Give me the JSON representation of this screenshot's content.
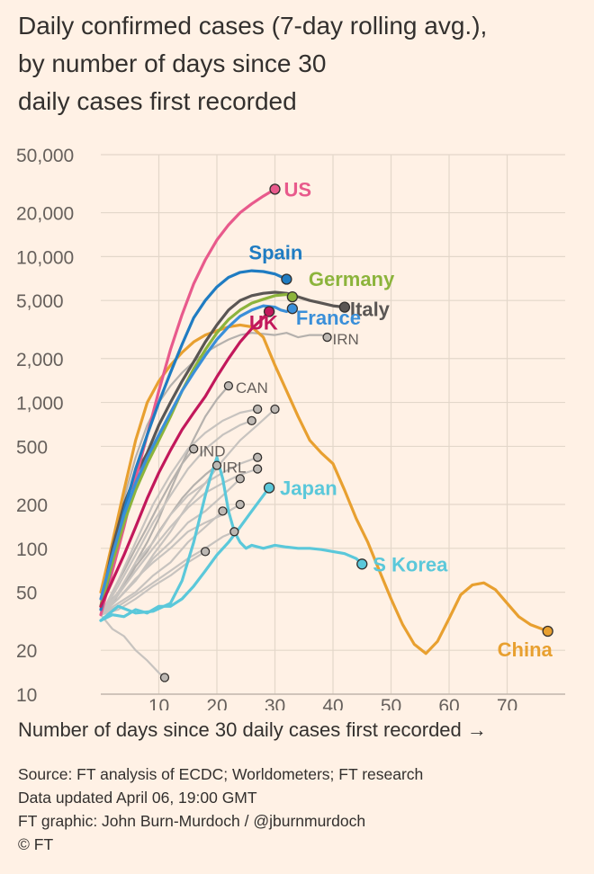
{
  "chart_data": {
    "type": "line",
    "title_lines": [
      "Daily confirmed cases (7-day rolling avg.),",
      "by number of days since 30",
      "daily cases first recorded"
    ],
    "xlabel": "Number of days since 30 daily cases first recorded",
    "x_arrow": "→",
    "yscale": "log",
    "xlim": [
      0,
      80
    ],
    "ylim": [
      10,
      50000
    ],
    "x_ticks": [
      10,
      20,
      30,
      40,
      50,
      60,
      70
    ],
    "x_tick_labels": [
      "10",
      "20",
      "30",
      "40",
      "50",
      "60",
      "70"
    ],
    "y_ticks": [
      10,
      20,
      50,
      100,
      200,
      500,
      1000,
      2000,
      5000,
      10000,
      20000,
      50000
    ],
    "y_tick_labels": [
      "10",
      "20",
      "50",
      "100",
      "200",
      "500",
      "1,000",
      "2,000",
      "5,000",
      "10,000",
      "20,000",
      "50,000"
    ],
    "series": [
      {
        "name": "China",
        "label": "China",
        "color": "#e8a030",
        "label_style": "bold",
        "x": [
          0,
          2,
          4,
          6,
          8,
          10,
          12,
          14,
          16,
          18,
          20,
          22,
          24,
          26,
          28,
          30,
          32,
          34,
          36,
          38,
          40,
          42,
          44,
          46,
          48,
          50,
          52,
          54,
          56,
          58,
          60,
          62,
          64,
          66,
          68,
          70,
          72,
          74,
          76,
          77
        ],
        "y": [
          50,
          110,
          250,
          550,
          1000,
          1400,
          1800,
          2200,
          2600,
          2900,
          3100,
          3300,
          3400,
          3300,
          2800,
          1800,
          1200,
          800,
          550,
          450,
          380,
          250,
          160,
          110,
          70,
          45,
          30,
          22,
          19,
          23,
          33,
          48,
          56,
          58,
          52,
          42,
          34,
          30,
          28,
          27
        ]
      },
      {
        "name": "S Korea",
        "label": "S Korea",
        "color": "#5bc8da",
        "label_style": "bold",
        "x": [
          0,
          3,
          6,
          9,
          12,
          14,
          16,
          18,
          19,
          20,
          21,
          22,
          23,
          24,
          25,
          26,
          28,
          30,
          32,
          34,
          36,
          38,
          40,
          42,
          44,
          45
        ],
        "y": [
          32,
          40,
          36,
          37,
          42,
          60,
          110,
          230,
          320,
          420,
          300,
          180,
          130,
          110,
          100,
          105,
          100,
          105,
          102,
          100,
          100,
          98,
          95,
          92,
          85,
          78
        ]
      },
      {
        "name": "Japan",
        "label": "Japan",
        "color": "#5bc8da",
        "label_style": "bold",
        "x": [
          0,
          2,
          4,
          6,
          8,
          10,
          12,
          14,
          16,
          18,
          20,
          22,
          24,
          26,
          28,
          29
        ],
        "y": [
          32,
          35,
          34,
          38,
          36,
          40,
          40,
          45,
          55,
          70,
          90,
          110,
          140,
          180,
          230,
          260
        ]
      },
      {
        "name": "Italy",
        "label": "Italy",
        "color": "#5a5654",
        "label_style": "bold",
        "x": [
          0,
          2,
          4,
          6,
          8,
          10,
          12,
          14,
          16,
          18,
          20,
          22,
          24,
          26,
          28,
          30,
          32,
          34,
          36,
          38,
          40,
          42
        ],
        "y": [
          40,
          100,
          200,
          320,
          450,
          700,
          1000,
          1400,
          1900,
          2600,
          3400,
          4300,
          5000,
          5400,
          5600,
          5700,
          5600,
          5300,
          5000,
          4800,
          4600,
          4500
        ]
      },
      {
        "name": "US",
        "label": "US",
        "color": "#e85a8c",
        "label_style": "bold",
        "x": [
          0,
          2,
          4,
          6,
          8,
          10,
          12,
          14,
          16,
          18,
          20,
          22,
          24,
          26,
          28,
          30
        ],
        "y": [
          35,
          70,
          140,
          300,
          600,
          1200,
          2300,
          4000,
          6500,
          9500,
          13000,
          16500,
          20000,
          23000,
          26000,
          29000
        ]
      },
      {
        "name": "Spain",
        "label": "Spain",
        "color": "#1f7cc2",
        "label_style": "bold",
        "x": [
          0,
          2,
          4,
          6,
          8,
          10,
          12,
          14,
          16,
          18,
          20,
          22,
          24,
          26,
          28,
          30,
          32
        ],
        "y": [
          38,
          80,
          180,
          350,
          600,
          1000,
          1600,
          2500,
          3800,
          5000,
          6200,
          7200,
          7800,
          8000,
          7900,
          7600,
          7000
        ]
      },
      {
        "name": "Germany",
        "label": "Germany",
        "color": "#8cb43c",
        "label_style": "bold",
        "x": [
          0,
          2,
          4,
          6,
          8,
          10,
          12,
          14,
          16,
          18,
          20,
          22,
          24,
          26,
          28,
          30,
          32,
          33
        ],
        "y": [
          40,
          80,
          150,
          250,
          380,
          550,
          800,
          1200,
          1700,
          2300,
          3000,
          3700,
          4300,
          4800,
          5100,
          5400,
          5500,
          5300
        ]
      },
      {
        "name": "France",
        "label": "France",
        "color": "#3a8fd9",
        "label_style": "bold",
        "x": [
          0,
          2,
          4,
          6,
          8,
          10,
          12,
          14,
          16,
          18,
          20,
          22,
          24,
          26,
          28,
          30,
          31,
          32,
          33
        ],
        "y": [
          45,
          90,
          170,
          280,
          420,
          600,
          850,
          1200,
          1600,
          2100,
          2700,
          3300,
          3900,
          4300,
          4600,
          4500,
          4300,
          4200,
          4400
        ]
      },
      {
        "name": "UK",
        "label": "UK",
        "color": "#c2185b",
        "label_style": "bold",
        "x": [
          0,
          2,
          4,
          6,
          8,
          10,
          12,
          14,
          16,
          18,
          20,
          22,
          24,
          26,
          28,
          29
        ],
        "y": [
          40,
          60,
          90,
          140,
          220,
          330,
          470,
          650,
          850,
          1100,
          1500,
          2000,
          2600,
          3200,
          3800,
          4200
        ]
      },
      {
        "name": "IRN",
        "label": "IRN",
        "color": "#b5b1ad",
        "label_style": "normal",
        "x": [
          0,
          2,
          4,
          6,
          8,
          10,
          12,
          14,
          16,
          18,
          20,
          22,
          24,
          26,
          28,
          30,
          32,
          34,
          36,
          38,
          39
        ],
        "y": [
          45,
          100,
          220,
          420,
          700,
          1000,
          1300,
          1600,
          1900,
          2200,
          2450,
          2700,
          2900,
          3000,
          2950,
          2900,
          3000,
          2800,
          2900,
          2900,
          2800
        ]
      },
      {
        "name": "CAN",
        "label": "CAN",
        "color": "#b5b1ad",
        "label_style": "normal",
        "x": [
          0,
          2,
          4,
          6,
          8,
          10,
          12,
          14,
          16,
          18,
          20,
          22
        ],
        "y": [
          35,
          45,
          55,
          80,
          110,
          160,
          250,
          380,
          560,
          800,
          1050,
          1300
        ]
      },
      {
        "name": "IND",
        "label": "IND",
        "color": "#b5b1ad",
        "label_style": "normal",
        "x": [
          0,
          2,
          4,
          6,
          8,
          10,
          12,
          14,
          16
        ],
        "y": [
          35,
          50,
          70,
          100,
          140,
          200,
          280,
          380,
          480
        ]
      },
      {
        "name": "IRL",
        "label": "IRL",
        "color": "#b5b1ad",
        "label_style": "normal",
        "x": [
          0,
          2,
          4,
          6,
          8,
          10,
          12,
          14,
          16,
          18,
          20
        ],
        "y": [
          35,
          42,
          55,
          75,
          95,
          130,
          170,
          220,
          270,
          320,
          370
        ]
      },
      {
        "name": "other-1",
        "label": "",
        "color": "#c7c3bf",
        "label_style": "none",
        "x": [
          0,
          2,
          4,
          6,
          8,
          10,
          11
        ],
        "y": [
          35,
          28,
          25,
          20,
          17,
          14,
          13
        ]
      },
      {
        "name": "other-2",
        "label": "",
        "color": "#c7c3bf",
        "label_style": "none",
        "x": [
          0,
          3,
          6,
          9,
          12,
          15,
          18,
          21,
          24,
          27,
          30
        ],
        "y": [
          35,
          45,
          60,
          90,
          130,
          200,
          280,
          400,
          550,
          700,
          900
        ]
      },
      {
        "name": "other-3",
        "label": "",
        "color": "#c7c3bf",
        "label_style": "none",
        "x": [
          0,
          3,
          6,
          9,
          12,
          15,
          18,
          21,
          24,
          27
        ],
        "y": [
          35,
          50,
          80,
          110,
          170,
          230,
          280,
          330,
          380,
          420
        ]
      },
      {
        "name": "other-4",
        "label": "",
        "color": "#c7c3bf",
        "label_style": "none",
        "x": [
          0,
          3,
          6,
          9,
          12,
          15,
          18,
          21,
          24
        ],
        "y": [
          35,
          45,
          60,
          85,
          110,
          150,
          180,
          230,
          300
        ]
      },
      {
        "name": "other-5",
        "label": "",
        "color": "#c7c3bf",
        "label_style": "none",
        "x": [
          0,
          3,
          6,
          9,
          12,
          15,
          18,
          21,
          24,
          26
        ],
        "y": [
          35,
          55,
          90,
          150,
          230,
          350,
          480,
          600,
          700,
          750
        ]
      },
      {
        "name": "other-6",
        "label": "",
        "color": "#c7c3bf",
        "label_style": "none",
        "x": [
          0,
          3,
          6,
          9,
          12,
          15,
          18,
          21
        ],
        "y": [
          35,
          42,
          50,
          65,
          80,
          110,
          140,
          180
        ]
      },
      {
        "name": "other-7",
        "label": "",
        "color": "#c7c3bf",
        "label_style": "none",
        "x": [
          0,
          3,
          6,
          9,
          12,
          15,
          18,
          21,
          24,
          27
        ],
        "y": [
          35,
          48,
          70,
          100,
          140,
          190,
          240,
          280,
          320,
          350
        ]
      },
      {
        "name": "other-8",
        "label": "",
        "color": "#c7c3bf",
        "label_style": "none",
        "x": [
          0,
          3,
          6,
          9,
          12,
          15,
          18,
          21,
          23
        ],
        "y": [
          35,
          40,
          48,
          58,
          70,
          85,
          100,
          120,
          130
        ]
      },
      {
        "name": "other-9",
        "label": "",
        "color": "#c7c3bf",
        "label_style": "none",
        "x": [
          0,
          3,
          6,
          9,
          12,
          15,
          18,
          21,
          24,
          27
        ],
        "y": [
          35,
          60,
          110,
          200,
          320,
          480,
          620,
          750,
          850,
          900
        ]
      },
      {
        "name": "other-10",
        "label": "",
        "color": "#c7c3bf",
        "label_style": "none",
        "x": [
          0,
          3,
          6,
          9,
          12,
          15,
          18,
          21,
          24
        ],
        "y": [
          35,
          45,
          62,
          80,
          100,
          130,
          150,
          170,
          200
        ]
      },
      {
        "name": "other-11",
        "label": "",
        "color": "#c7c3bf",
        "label_style": "none",
        "x": [
          0,
          3,
          6,
          9,
          12,
          15,
          18
        ],
        "y": [
          35,
          38,
          45,
          55,
          65,
          80,
          95
        ]
      }
    ]
  },
  "footer": {
    "source": "Source: FT analysis of ECDC; Worldometers; FT research",
    "updated": "Data updated April 06, 19:00 GMT",
    "credit": "FT graphic: John Burn-Murdoch / @jburnmurdoch",
    "copyright": "© FT"
  }
}
